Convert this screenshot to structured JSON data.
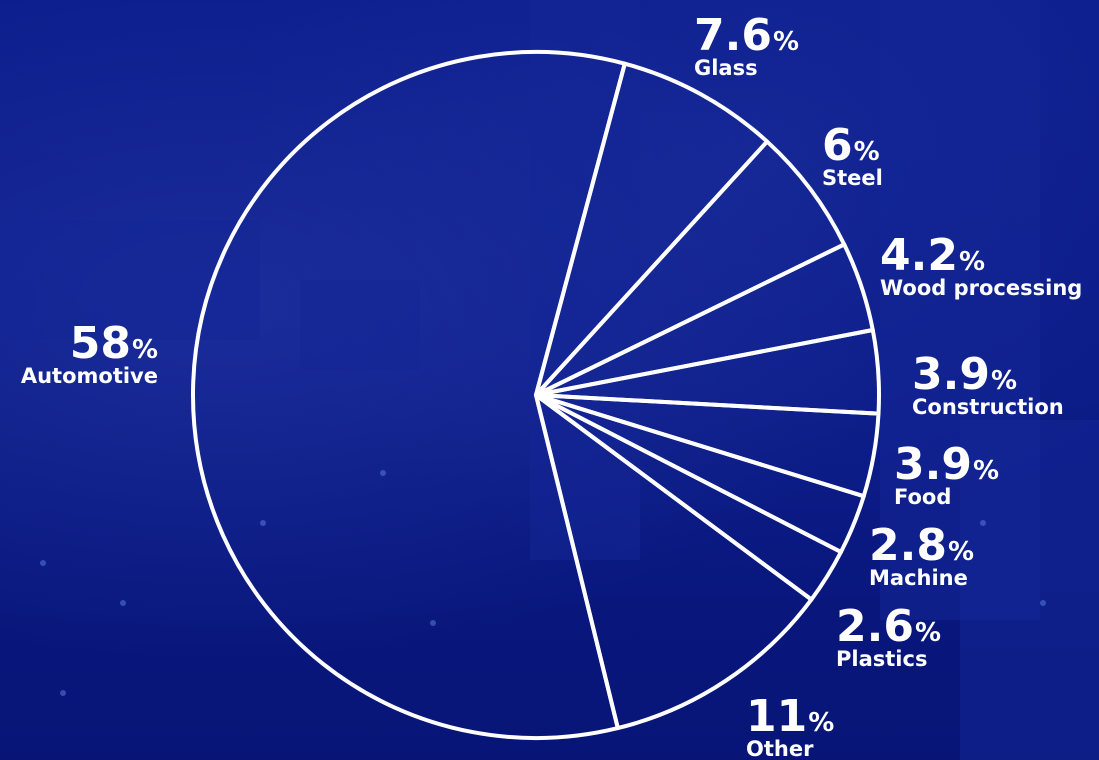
{
  "colors": {
    "background": "#0a1a8a",
    "stroke": "#ffffff",
    "text": "#ffffff"
  },
  "percent_sign": "%",
  "chart_data": {
    "type": "pie",
    "slices": [
      {
        "label": "Glass",
        "value": 7.6,
        "display": "7.6"
      },
      {
        "label": "Steel",
        "value": 6,
        "display": "6"
      },
      {
        "label": "Wood processing",
        "value": 4.2,
        "display": "4.2"
      },
      {
        "label": "Construction",
        "value": 3.9,
        "display": "3.9"
      },
      {
        "label": "Food",
        "value": 3.9,
        "display": "3.9"
      },
      {
        "label": "Machine",
        "value": 2.8,
        "display": "2.8"
      },
      {
        "label": "Plastics",
        "value": 2.6,
        "display": "2.6"
      },
      {
        "label": "Other",
        "value": 11,
        "display": "11"
      },
      {
        "label": "Automotive",
        "value": 58,
        "display": "58"
      }
    ],
    "start_angle_deg": 15,
    "direction": "clockwise",
    "legend": "none"
  }
}
